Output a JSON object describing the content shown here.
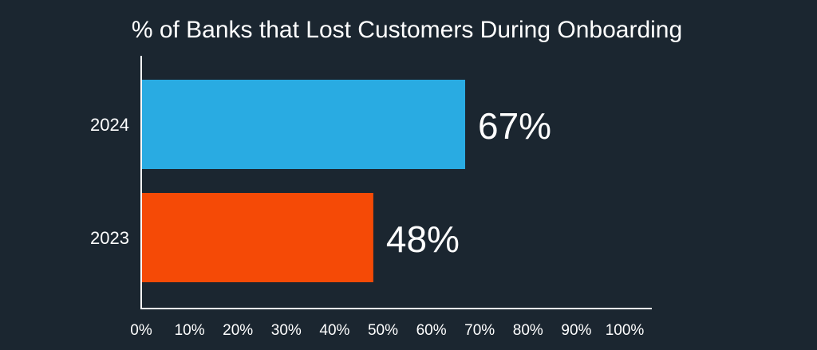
{
  "chart_data": {
    "type": "bar",
    "orientation": "horizontal",
    "title": "% of Banks that Lost Customers During Onboarding",
    "categories": [
      "2024",
      "2023"
    ],
    "values": [
      67,
      48
    ],
    "value_labels": [
      "67%",
      "48%"
    ],
    "bar_colors": [
      "#29abe2",
      "#f54a06"
    ],
    "xlim": [
      0,
      100
    ],
    "x_ticks": [
      "0%",
      "10%",
      "20%",
      "30%",
      "40%",
      "50%",
      "60%",
      "70%",
      "80%",
      "90%",
      "100%"
    ],
    "xlabel": "",
    "ylabel": "",
    "grid": false,
    "legend": false
  },
  "colors": {
    "background": "#1b2630",
    "text": "#ffffff",
    "axis": "#ffffff"
  }
}
